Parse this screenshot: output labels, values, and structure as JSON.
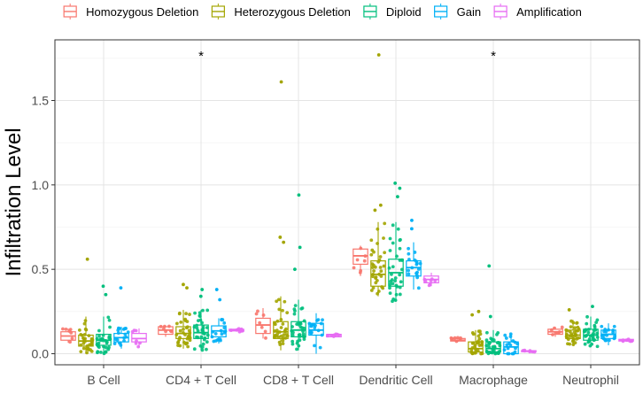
{
  "chart_data": {
    "type": "box",
    "title": "",
    "xlabel": "",
    "ylabel": "Infiltration Level",
    "ylim": [
      -0.05,
      1.8
    ],
    "yticks": [
      0.0,
      0.5,
      1.0,
      1.5
    ],
    "ytick_labels": [
      "0.0",
      "0.5",
      "1.0",
      "1.5"
    ],
    "grid": true,
    "legend_position": "top",
    "categories": [
      "B Cell",
      "CD4 + T Cell",
      "CD8 + T Cell",
      "Dendritic Cell",
      "Macrophage",
      "Neutrophil"
    ],
    "significance": [
      {
        "category": "CD4 + T Cell",
        "label": "*",
        "y": 1.77
      },
      {
        "category": "Macrophage",
        "label": "*",
        "y": 1.77
      }
    ],
    "series": [
      {
        "name": "Homozygous Deletion",
        "color": "#F8766D",
        "boxes": [
          {
            "q1": 0.08,
            "median": 0.105,
            "q3": 0.13,
            "wmin": 0.065,
            "wmax": 0.15
          },
          {
            "q1": 0.115,
            "median": 0.14,
            "q3": 0.16,
            "wmin": 0.1,
            "wmax": 0.165
          },
          {
            "q1": 0.12,
            "median": 0.17,
            "q3": 0.21,
            "wmin": 0.09,
            "wmax": 0.27
          },
          {
            "q1": 0.53,
            "median": 0.58,
            "q3": 0.62,
            "wmin": 0.46,
            "wmax": 0.64
          },
          {
            "q1": 0.075,
            "median": 0.08,
            "q3": 0.09,
            "wmin": 0.07,
            "wmax": 0.095
          },
          {
            "q1": 0.115,
            "median": 0.13,
            "q3": 0.145,
            "wmin": 0.1,
            "wmax": 0.16
          }
        ]
      },
      {
        "name": "Heterozygous Deletion",
        "color": "#A3A500",
        "boxes": [
          {
            "q1": 0.045,
            "median": 0.075,
            "q3": 0.11,
            "wmin": 0.0,
            "wmax": 0.22,
            "outliers": [
              0.56
            ]
          },
          {
            "q1": 0.09,
            "median": 0.12,
            "q3": 0.16,
            "wmin": 0.03,
            "wmax": 0.26,
            "outliers": [
              0.41,
              0.39
            ]
          },
          {
            "q1": 0.09,
            "median": 0.13,
            "q3": 0.19,
            "wmin": 0.02,
            "wmax": 0.34,
            "outliers": [
              0.69,
              0.66,
              1.61
            ]
          },
          {
            "q1": 0.4,
            "median": 0.47,
            "q3": 0.55,
            "wmin": 0.34,
            "wmax": 0.78,
            "outliers": [
              0.88,
              0.85,
              1.77
            ]
          },
          {
            "q1": 0.01,
            "median": 0.03,
            "q3": 0.07,
            "wmin": 0.0,
            "wmax": 0.14,
            "outliers": [
              0.25,
              0.23
            ]
          },
          {
            "q1": 0.09,
            "median": 0.11,
            "q3": 0.14,
            "wmin": 0.05,
            "wmax": 0.2,
            "outliers": [
              0.26
            ]
          }
        ]
      },
      {
        "name": "Diploid",
        "color": "#00BF7D",
        "boxes": [
          {
            "q1": 0.05,
            "median": 0.08,
            "q3": 0.115,
            "wmin": 0.0,
            "wmax": 0.22,
            "outliers": [
              0.4,
              0.35
            ]
          },
          {
            "q1": 0.09,
            "median": 0.125,
            "q3": 0.17,
            "wmin": 0.02,
            "wmax": 0.26,
            "outliers": [
              0.38,
              0.34
            ]
          },
          {
            "q1": 0.1,
            "median": 0.14,
            "q3": 0.19,
            "wmin": 0.02,
            "wmax": 0.32,
            "outliers": [
              0.63,
              0.5,
              0.94
            ]
          },
          {
            "q1": 0.4,
            "median": 0.48,
            "q3": 0.56,
            "wmin": 0.31,
            "wmax": 0.78,
            "outliers": [
              1.01,
              0.98,
              0.93
            ]
          },
          {
            "q1": 0.01,
            "median": 0.03,
            "q3": 0.07,
            "wmin": 0.0,
            "wmax": 0.14,
            "outliers": [
              0.52,
              0.22
            ]
          },
          {
            "q1": 0.08,
            "median": 0.11,
            "q3": 0.145,
            "wmin": 0.04,
            "wmax": 0.22,
            "outliers": [
              0.28
            ]
          }
        ]
      },
      {
        "name": "Gain",
        "color": "#00B0F6",
        "boxes": [
          {
            "q1": 0.07,
            "median": 0.095,
            "q3": 0.12,
            "wmin": 0.03,
            "wmax": 0.16,
            "outliers": [
              0.39
            ]
          },
          {
            "q1": 0.1,
            "median": 0.135,
            "q3": 0.165,
            "wmin": 0.06,
            "wmax": 0.21,
            "outliers": [
              0.38,
              0.32
            ]
          },
          {
            "q1": 0.11,
            "median": 0.14,
            "q3": 0.18,
            "wmin": 0.0,
            "wmax": 0.24
          },
          {
            "q1": 0.46,
            "median": 0.51,
            "q3": 0.55,
            "wmin": 0.38,
            "wmax": 0.66,
            "outliers": [
              0.79,
              0.74
            ]
          },
          {
            "q1": 0.0,
            "median": 0.04,
            "q3": 0.07,
            "wmin": 0.0,
            "wmax": 0.12
          },
          {
            "q1": 0.09,
            "median": 0.115,
            "q3": 0.14,
            "wmin": 0.05,
            "wmax": 0.18
          }
        ]
      },
      {
        "name": "Amplification",
        "color": "#E76BF3",
        "boxes": [
          {
            "q1": 0.07,
            "median": 0.09,
            "q3": 0.12,
            "wmin": 0.04,
            "wmax": 0.15
          },
          {
            "q1": 0.135,
            "median": 0.14,
            "q3": 0.145,
            "wmin": 0.13,
            "wmax": 0.15
          },
          {
            "q1": 0.1,
            "median": 0.11,
            "q3": 0.115,
            "wmin": 0.095,
            "wmax": 0.12
          },
          {
            "q1": 0.42,
            "median": 0.44,
            "q3": 0.46,
            "wmin": 0.4,
            "wmax": 0.48
          },
          {
            "q1": 0.012,
            "median": 0.015,
            "q3": 0.018,
            "wmin": 0.01,
            "wmax": 0.02
          },
          {
            "q1": 0.075,
            "median": 0.08,
            "q3": 0.085,
            "wmin": 0.07,
            "wmax": 0.09
          }
        ]
      }
    ]
  }
}
